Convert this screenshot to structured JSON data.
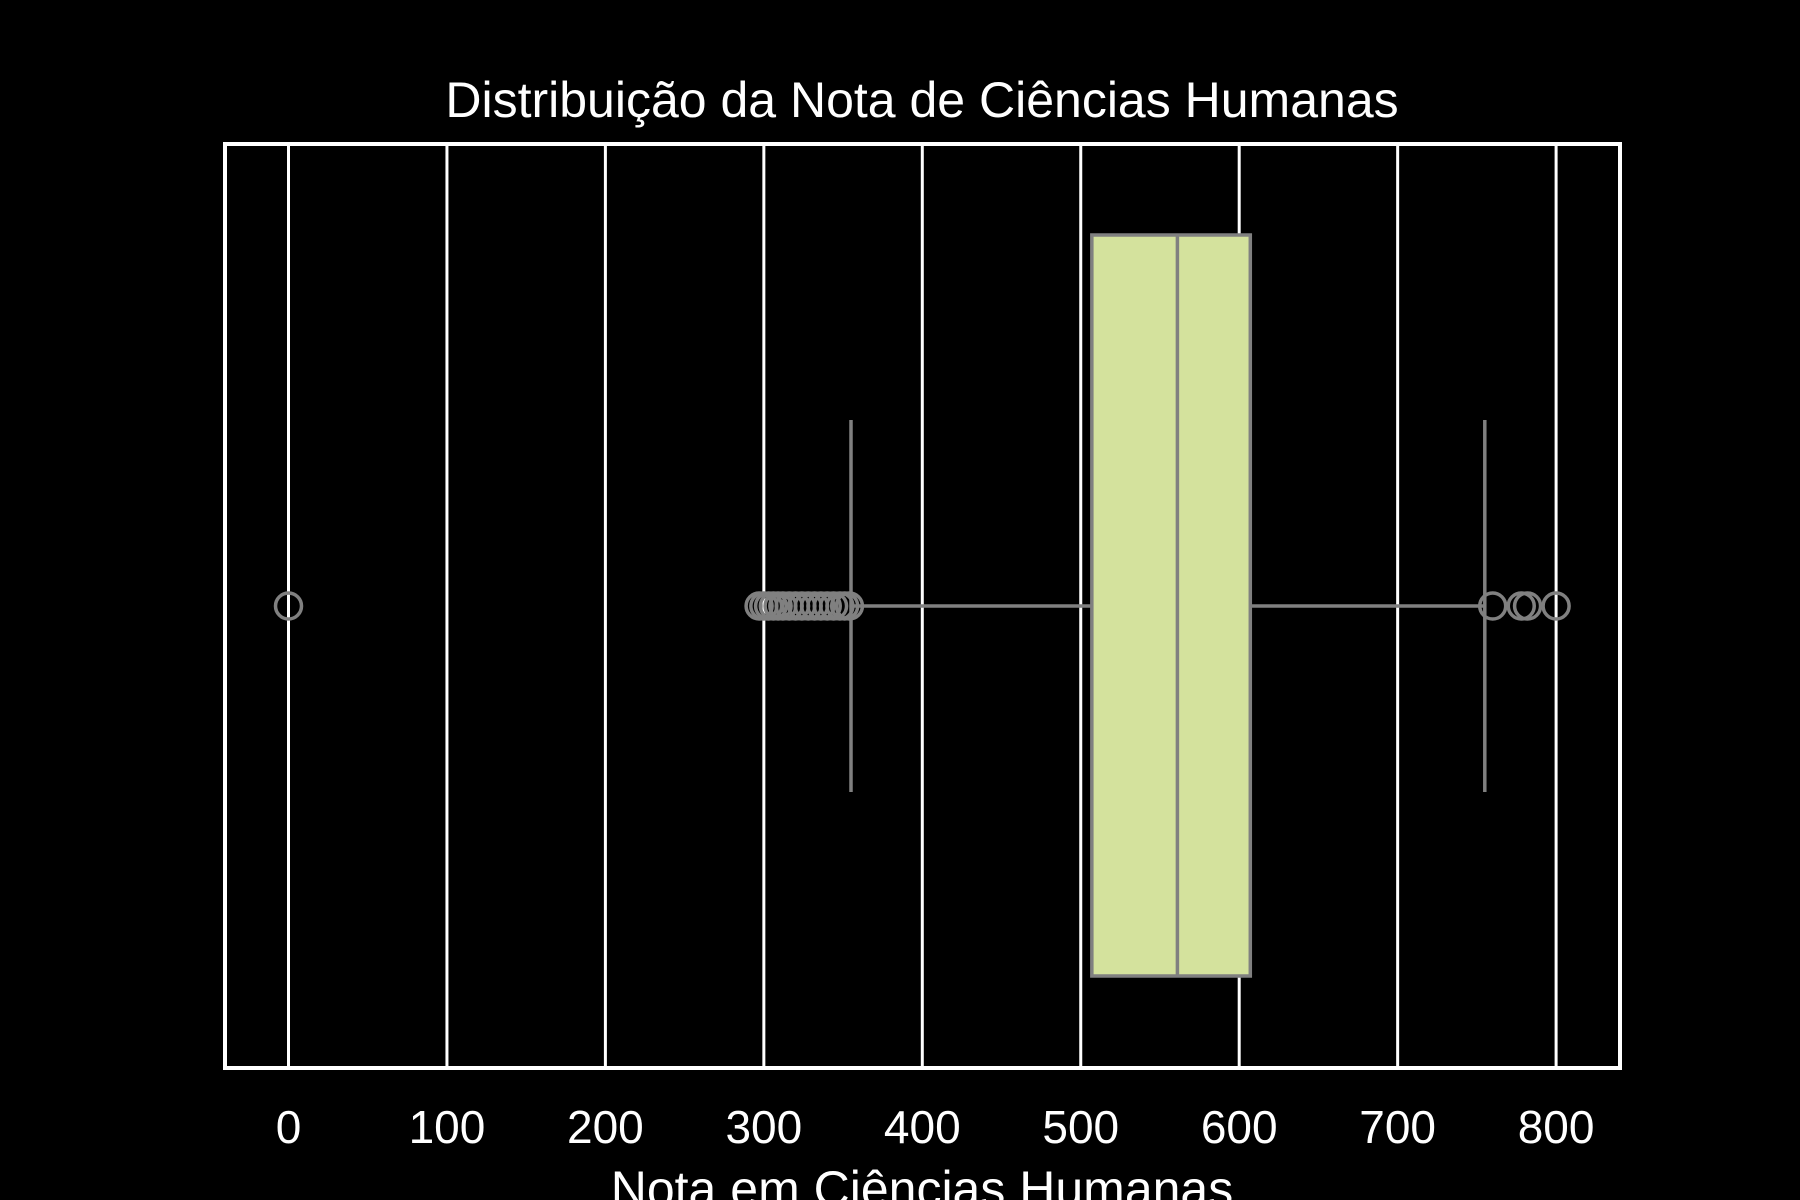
{
  "chart_data": {
    "type": "box",
    "orientation": "horizontal",
    "title": "Distribuição da Nota de Ciências Humanas",
    "xlabel": "Nota em Ciências Humanas",
    "ylabel": "",
    "xlim": [
      -40,
      840
    ],
    "xticks": [
      0,
      100,
      200,
      300,
      400,
      500,
      600,
      700,
      800
    ],
    "xtick_labels": [
      "0",
      "100",
      "200",
      "300",
      "400",
      "500",
      "600",
      "700",
      "800"
    ],
    "grid": "vertical",
    "box": {
      "whisker_low": 355,
      "q1": 507,
      "median": 561,
      "q3": 607,
      "whisker_high": 755
    },
    "outliers": [
      0,
      297,
      300,
      303,
      306,
      309,
      312,
      316,
      320,
      324,
      328,
      332,
      336,
      340,
      344,
      348,
      351,
      354,
      760,
      778,
      782,
      800
    ],
    "colors": {
      "background": "#000000",
      "text": "#ffffff",
      "axes_frame": "#ffffff",
      "grid": "#ffffff",
      "box_fill": "#d4e29d",
      "box_line": "#808080"
    }
  }
}
